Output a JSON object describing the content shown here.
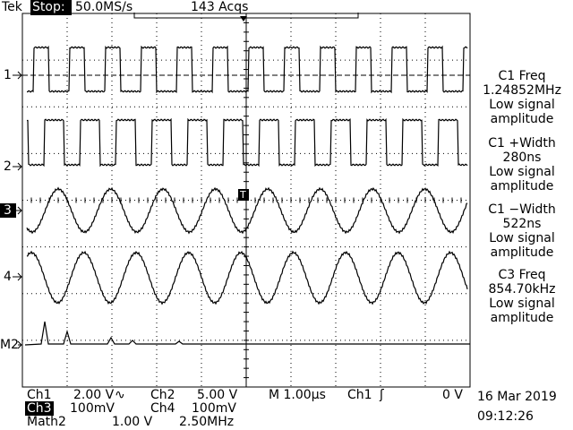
{
  "header": {
    "brand": "Tek",
    "status": "Stop:",
    "sample_rate": "50.0MS/s",
    "acquisitions": "143 Acqs"
  },
  "trigger_marker": "T",
  "channel_markers": [
    "1",
    "2",
    "3",
    "4",
    "M2"
  ],
  "measurements": [
    [
      "C1 Freq",
      "1.24852MHz",
      "Low signal",
      "amplitude"
    ],
    [
      "C1 +Width",
      "280ns",
      "Low signal",
      "amplitude"
    ],
    [
      "C1 −Width",
      "522ns",
      "Low signal",
      "amplitude"
    ],
    [
      "C3 Freq",
      "854.70kHz",
      "Low signal",
      "amplitude"
    ]
  ],
  "readout": {
    "row1": [
      "Ch1",
      "2.00 V",
      "∿",
      "Ch2",
      "5.00 V",
      "M 1.00µs",
      "Ch1",
      "ʃ",
      "0 V"
    ],
    "row2": [
      "Ch3",
      "100mV",
      "Ch4",
      "100mV"
    ],
    "row3": [
      "Math2",
      "1.00 V",
      "2.50MHz"
    ]
  },
  "date": "16 Mar 2019",
  "time": "09:12:26"
}
